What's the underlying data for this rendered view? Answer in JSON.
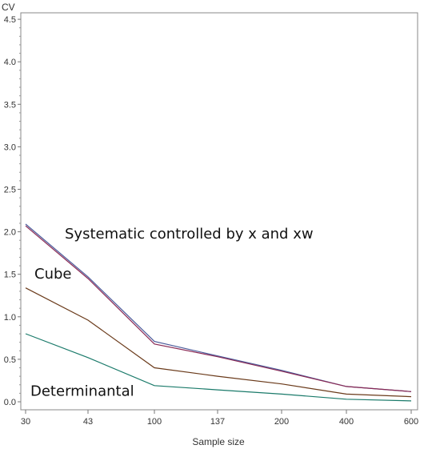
{
  "chart_data": {
    "type": "line",
    "xlabel": "Sample size",
    "ylabel": "CV",
    "categories": [
      "30",
      "43",
      "100",
      "137",
      "200",
      "400",
      "600"
    ],
    "ylim": [
      0,
      4.5
    ],
    "yticks": [
      "0.0",
      "0.5",
      "1.0",
      "1.5",
      "2.0",
      "2.5",
      "3.0",
      "3.5",
      "4.0",
      "4.5"
    ],
    "grid": false,
    "series": [
      {
        "key": "systematic_x",
        "color": "#4a5a9a",
        "values": [
          2.09,
          1.47,
          0.71,
          0.54,
          0.37,
          0.18,
          0.12
        ]
      },
      {
        "key": "systematic_xw",
        "color": "#8a2a55",
        "values": [
          2.07,
          1.45,
          0.68,
          0.53,
          0.36,
          0.18,
          0.12
        ]
      },
      {
        "key": "cube",
        "color": "#6a3a1a",
        "values": [
          1.34,
          0.96,
          0.4,
          0.3,
          0.21,
          0.09,
          0.06
        ]
      },
      {
        "key": "determinantal",
        "color": "#1a7a6a",
        "values": [
          0.8,
          0.52,
          0.19,
          0.14,
          0.09,
          0.03,
          0.01
        ]
      }
    ],
    "annotations": [
      {
        "text": "Systematic controlled by x and xw",
        "x": "43",
        "y": 1.92
      },
      {
        "text": "Cube",
        "x": "30",
        "y": 1.45
      },
      {
        "text": "Determinantal",
        "x": "30",
        "y": 0.07
      }
    ]
  }
}
